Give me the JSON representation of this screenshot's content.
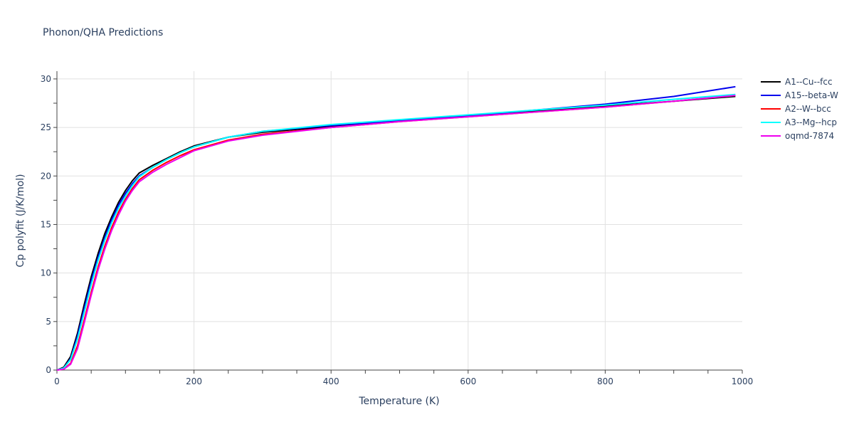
{
  "chart_data": {
    "type": "line",
    "title": "Phonon/QHA Predictions",
    "xlabel": "Temperature (K)",
    "ylabel": "Cp polyfit (J/K/mol)",
    "xlim": [
      0,
      1000
    ],
    "ylim": [
      0,
      30.8
    ],
    "xticks": [
      0,
      200,
      400,
      600,
      800,
      1000
    ],
    "yticks": [
      0,
      5,
      10,
      15,
      20,
      25,
      30
    ],
    "grid": true,
    "legend_position": "top-right",
    "series": [
      {
        "name": "A1--Cu--fcc",
        "color": "#000000",
        "x": [
          0,
          10,
          20,
          30,
          40,
          50,
          60,
          70,
          80,
          90,
          100,
          110,
          120,
          140,
          160,
          180,
          200,
          250,
          300,
          400,
          500,
          600,
          700,
          800,
          900,
          990
        ],
        "y": [
          0,
          0.3,
          1.4,
          3.8,
          6.8,
          9.6,
          12.0,
          14.1,
          15.8,
          17.3,
          18.5,
          19.5,
          20.3,
          21.1,
          21.8,
          22.5,
          23.1,
          24.0,
          24.5,
          25.1,
          25.7,
          26.2,
          26.7,
          27.2,
          27.7,
          28.2
        ]
      },
      {
        "name": "A15--beta-W",
        "color": "#0000ee",
        "x": [
          0,
          10,
          20,
          30,
          40,
          50,
          60,
          70,
          80,
          90,
          100,
          110,
          120,
          140,
          160,
          180,
          200,
          250,
          300,
          400,
          500,
          600,
          700,
          800,
          900,
          990
        ],
        "y": [
          0,
          0.2,
          1.2,
          3.5,
          6.4,
          9.2,
          11.6,
          13.7,
          15.5,
          17.0,
          18.2,
          19.2,
          20.0,
          20.9,
          21.7,
          22.4,
          23.0,
          24.0,
          24.6,
          25.2,
          25.7,
          26.2,
          26.8,
          27.4,
          28.2,
          29.2
        ]
      },
      {
        "name": "A2--W--bcc",
        "color": "#ff0000",
        "x": [
          0,
          10,
          20,
          30,
          40,
          50,
          60,
          70,
          80,
          90,
          100,
          110,
          120,
          140,
          160,
          180,
          200,
          250,
          300,
          400,
          500,
          600,
          700,
          800,
          900,
          990
        ],
        "y": [
          0,
          0.1,
          0.7,
          2.5,
          5.2,
          8.0,
          10.6,
          12.8,
          14.7,
          16.3,
          17.6,
          18.7,
          19.6,
          20.6,
          21.4,
          22.1,
          22.7,
          23.7,
          24.3,
          25.0,
          25.6,
          26.1,
          26.6,
          27.1,
          27.7,
          28.3
        ]
      },
      {
        "name": "A3--Mg--hcp",
        "color": "#00ffff",
        "x": [
          0,
          10,
          20,
          30,
          40,
          50,
          60,
          70,
          80,
          90,
          100,
          110,
          120,
          140,
          160,
          180,
          200,
          250,
          300,
          400,
          500,
          600,
          700,
          800,
          900,
          990
        ],
        "y": [
          0,
          0.2,
          1.1,
          3.2,
          6.0,
          8.8,
          11.3,
          13.4,
          15.2,
          16.7,
          17.9,
          19.0,
          19.9,
          20.9,
          21.7,
          22.4,
          23.0,
          24.0,
          24.6,
          25.3,
          25.8,
          26.3,
          26.8,
          27.3,
          27.9,
          28.4
        ]
      },
      {
        "name": "oqmd-7874",
        "color": "#ee00ee",
        "x": [
          0,
          10,
          20,
          30,
          40,
          50,
          60,
          70,
          80,
          90,
          100,
          110,
          120,
          140,
          160,
          180,
          200,
          250,
          300,
          400,
          500,
          600,
          700,
          800,
          900,
          990
        ],
        "y": [
          0,
          0.1,
          0.6,
          2.2,
          4.9,
          7.7,
          10.3,
          12.5,
          14.4,
          16.0,
          17.4,
          18.5,
          19.4,
          20.4,
          21.2,
          21.9,
          22.6,
          23.6,
          24.2,
          25.0,
          25.6,
          26.1,
          26.6,
          27.1,
          27.7,
          28.3
        ]
      }
    ]
  }
}
